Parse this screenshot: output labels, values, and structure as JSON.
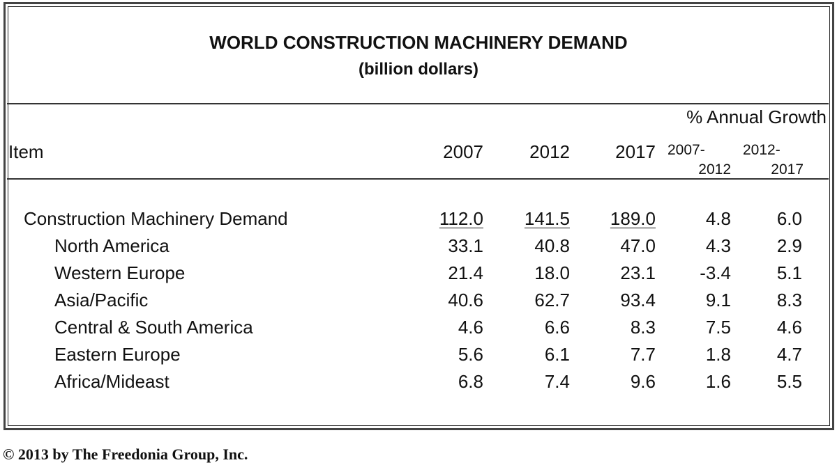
{
  "chart_data": {
    "type": "table",
    "title": "WORLD CONSTRUCTION MACHINERY DEMAND",
    "subtitle": "(billion dollars)",
    "group_header": "% Annual Growth",
    "columns": [
      "Item",
      "2007",
      "2012",
      "2017",
      "2007-2012",
      "2012-2017"
    ],
    "column_labels": {
      "item": "Item",
      "y2007": "2007",
      "y2012": "2012",
      "y2017": "2017",
      "g1_top": "2007-",
      "g1_bottom": "2012",
      "g2_top": "2012-",
      "g2_bottom": "2017"
    },
    "rows": [
      {
        "item": "Construction Machinery Demand",
        "indent": false,
        "underline": true,
        "values": [
          "112.0",
          "141.5",
          "189.0",
          "4.8",
          "6.0"
        ]
      },
      {
        "item": "North America",
        "indent": true,
        "values": [
          "33.1",
          "40.8",
          "47.0",
          "4.3",
          "2.9"
        ]
      },
      {
        "item": "Western Europe",
        "indent": true,
        "values": [
          "21.4",
          "18.0",
          "23.1",
          "-3.4",
          "5.1"
        ]
      },
      {
        "item": "Asia/Pacific",
        "indent": true,
        "values": [
          "40.6",
          "62.7",
          "93.4",
          "9.1",
          "8.3"
        ]
      },
      {
        "item": "Central & South America",
        "indent": true,
        "values": [
          "4.6",
          "6.6",
          "8.3",
          "7.5",
          "4.6"
        ]
      },
      {
        "item": "Eastern Europe",
        "indent": true,
        "values": [
          "5.6",
          "6.1",
          "7.7",
          "1.8",
          "4.7"
        ]
      },
      {
        "item": "Africa/Mideast",
        "indent": true,
        "values": [
          "6.8",
          "7.4",
          "9.6",
          "1.6",
          "5.5"
        ]
      }
    ]
  },
  "footer": "© 2013 by The Freedonia Group, Inc."
}
